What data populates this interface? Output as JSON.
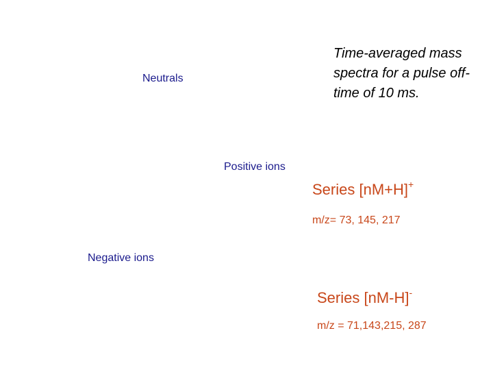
{
  "caption": "Time-averaged mass spectra for a pulse off-time of 10 ms.",
  "labels": {
    "neutrals": "Neutrals",
    "positive_ions": "Positive ions",
    "negative_ions": "Negative ions"
  },
  "positive_series": {
    "title": "Series [nM+H]",
    "charge": "+",
    "mz": "m/z= 73, 145, 217"
  },
  "negative_series": {
    "title": "Series [nM-H]",
    "charge": "-",
    "mz": "m/z = 71,143,215, 287"
  },
  "colors": {
    "label": "#1a1a8c",
    "series": "#c8471a",
    "caption": "#000000"
  }
}
